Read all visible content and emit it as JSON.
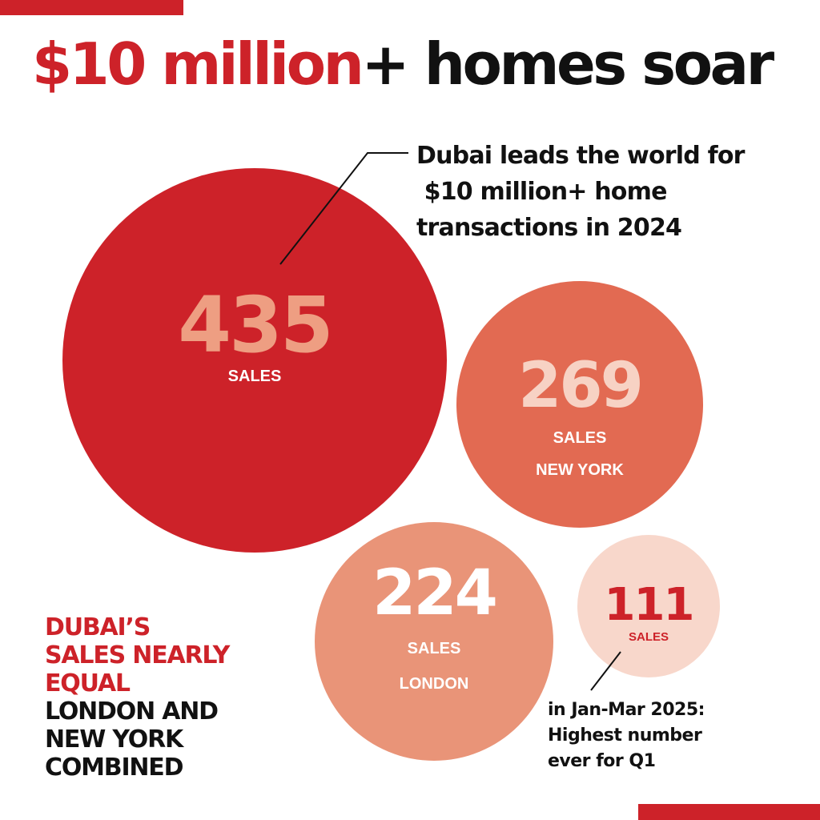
{
  "colors": {
    "accent": "#cd2229",
    "dubai_bubble": "#cd2229",
    "new_york_bubble": "#e26a52",
    "london_bubble": "#e99478",
    "q1_bubble": "#f8d7cb",
    "text_dark": "#111111"
  },
  "title": {
    "highlight": "$10 million",
    "rest": "+ homes soar"
  },
  "callouts": {
    "top": "Dubai leads the world for\n $10 million+ home\ntransactions in 2024",
    "bottom": "in Jan-Mar 2025:\nHighest number\never for Q1"
  },
  "note": {
    "red": "DUBAI’S\nSALES NEARLY\nEQUAL",
    "black": "LONDON AND\nNEW YORK\nCOMBINED"
  },
  "chart_data": {
    "type": "bubble",
    "series": [
      {
        "value": 435,
        "label": "SALES"
      },
      {
        "value": 269,
        "label": "SALES",
        "sublabel": "NEW YORK"
      },
      {
        "value": 224,
        "label": "SALES",
        "sublabel": "LONDON"
      },
      {
        "value": 111,
        "label": "SALES"
      }
    ]
  }
}
